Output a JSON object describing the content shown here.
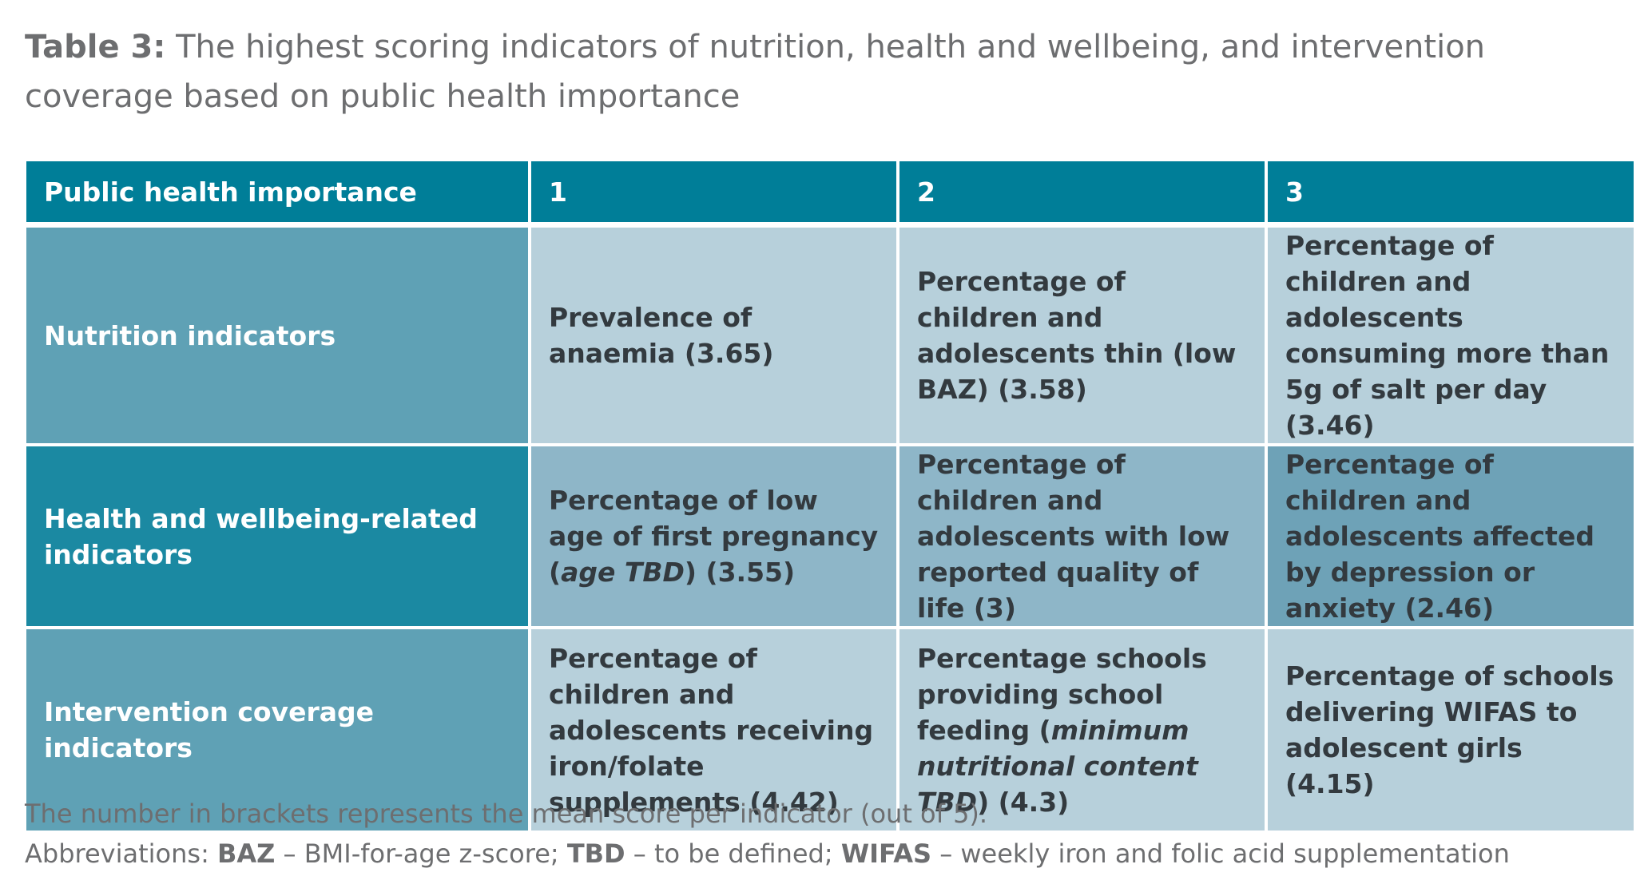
{
  "caption": {
    "label": "Table 3:",
    "text": " The highest scoring indicators of nutrition, health and wellbeing, and intervention coverage based on public health importance"
  },
  "table": {
    "header": {
      "row_label": "Public health importance",
      "col1": "1",
      "col2": "2",
      "col3": "3"
    },
    "rows": [
      {
        "label": "Nutrition indicators",
        "c1": "Prevalence of anaemia (3.65)",
        "c2": "Percentage of children and adolescents thin (low BAZ) (3.58)",
        "c3": "Percentage of children and adolescents consuming more than 5g of salt per day (3.46)"
      },
      {
        "label": "Health and wellbeing-related indicators",
        "c1_pre": "Percentage of low age of first pregnancy (",
        "c1_em": "age TBD",
        "c1_post": ") (3.55)",
        "c2": "Percentage of children and adolescents with low reported quality of life (3)",
        "c3": "Percentage of children and adolescents affected by depression or anxiety (2.46)"
      },
      {
        "label": "Intervention coverage indicators",
        "c1": "Percentage of children and adolescents receiving iron/folate supplements (4.42)",
        "c2_pre": "Percentage schools providing school feeding (",
        "c2_em": "minimum nutritional content TBD",
        "c2_post": ") (4.3)",
        "c3": "Percentage of schools delivering WIFAS to adolescent girls (4.15)"
      }
    ]
  },
  "notes": {
    "line1": "The number in brackets represents the mean score per indicator (out of 5).",
    "abbr_prefix": "Abbreviations: ",
    "abbr1_key": "BAZ",
    "abbr1_val": " – BMI-for-age z-score; ",
    "abbr2_key": "TBD",
    "abbr2_val": " – to be defined; ",
    "abbr3_key": "WIFAS",
    "abbr3_val": " – weekly iron and folic acid supplementation"
  }
}
